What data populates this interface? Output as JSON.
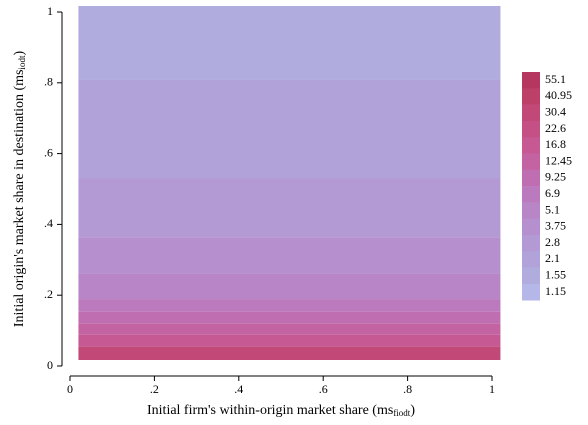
{
  "chart_data": {
    "type": "contour",
    "x_label": [
      "Initial firm's within-origin market share (ms",
      "fiodt",
      ")"
    ],
    "y_label": [
      "Initial origin's market share in destination (ms",
      "iodt",
      ")"
    ],
    "xlim": [
      0,
      1
    ],
    "ylim": [
      0,
      1
    ],
    "xticks": [
      0,
      {
        "value": 0.2,
        "label": ".2"
      },
      {
        "value": 0.4,
        "label": ".4"
      },
      {
        "value": 0.6,
        "label": ".6"
      },
      {
        "value": 0.8,
        "label": ".8"
      },
      1
    ],
    "yticks": [
      0,
      {
        "value": 0.2,
        "label": ".2"
      },
      {
        "value": 0.4,
        "label": ".4"
      },
      {
        "value": 0.6,
        "label": ".6"
      },
      {
        "value": 0.8,
        "label": ".8"
      },
      1
    ],
    "x_extent": [
      0.02,
      1.02
    ],
    "bands": [
      {
        "y": [
          0.808,
          1.017
        ],
        "z": 1.55
      },
      {
        "y": [
          0.531,
          0.808
        ],
        "z": 2.1
      },
      {
        "y": [
          0.364,
          0.531
        ],
        "z": 2.8
      },
      {
        "y": [
          0.26,
          0.364
        ],
        "z": 3.75
      },
      {
        "y": [
          0.189,
          0.26
        ],
        "z": 5.1
      },
      {
        "y": [
          0.153,
          0.189
        ],
        "z": 6.9
      },
      {
        "y": [
          0.119,
          0.153
        ],
        "z": 9.25
      },
      {
        "y": [
          0.088,
          0.119
        ],
        "z": 12.45
      },
      {
        "y": [
          0.054,
          0.088
        ],
        "z": 16.8
      },
      {
        "y": [
          0.017,
          0.054
        ],
        "z": 30.4
      }
    ],
    "legend": [
      {
        "level": 55.1,
        "label": "55.1",
        "color": "#b5375f"
      },
      {
        "level": 40.95,
        "label": "40.95",
        "color": "#bd4069"
      },
      {
        "level": 30.4,
        "label": "30.4",
        "color": "#c24877"
      },
      {
        "level": 22.6,
        "label": "22.6",
        "color": "#c55085"
      },
      {
        "level": 16.8,
        "label": "16.8",
        "color": "#c65993"
      },
      {
        "level": 12.45,
        "label": "12.45",
        "color": "#c463a2"
      },
      {
        "level": 9.25,
        "label": "9.25",
        "color": "#c06eb2"
      },
      {
        "level": 6.9,
        "label": "6.9",
        "color": "#bc7abe"
      },
      {
        "level": 5.1,
        "label": "5.1",
        "color": "#b886c6"
      },
      {
        "level": 3.75,
        "label": "3.75",
        "color": "#b690ce"
      },
      {
        "level": 2.8,
        "label": "2.8",
        "color": "#b49ad4"
      },
      {
        "level": 2.1,
        "label": "2.1",
        "color": "#b1a3d9"
      },
      {
        "level": 1.55,
        "label": "1.55",
        "color": "#b0acdd"
      },
      {
        "level": 1.15,
        "label": "1.15",
        "color": "#b4b7e7"
      }
    ]
  }
}
